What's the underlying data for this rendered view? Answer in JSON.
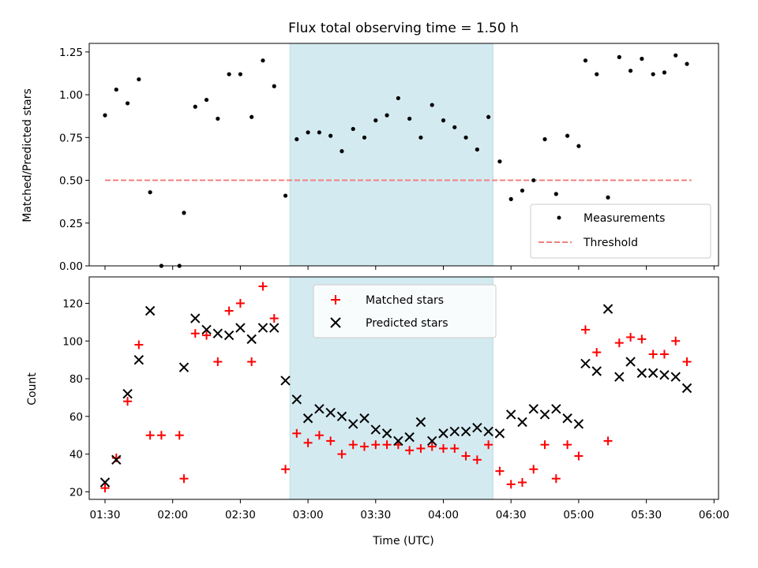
{
  "figure": {
    "title": "Flux total observing time = 1.50 h",
    "xlabel": "Time (UTC)"
  },
  "chart_data": [
    {
      "type": "scatter",
      "panel": "top",
      "ylabel": "Matched/Predicted stars",
      "xlim": [
        "01:23",
        "06:02"
      ],
      "ylim": [
        0,
        1.3
      ],
      "yticks": [
        "0.00",
        "0.25",
        "0.50",
        "0.75",
        "1.00",
        "1.25"
      ],
      "shaded_span": {
        "start": "02:52",
        "end": "04:22",
        "color": "#d4eaf1"
      },
      "threshold": {
        "name": "Threshold",
        "y": 0.5,
        "x_start": "01:30",
        "x_end": "05:50",
        "color": "#f08080",
        "style": "dashed"
      },
      "series": [
        {
          "name": "Measurements",
          "color": "#000000",
          "marker": "dot",
          "points": [
            [
              "01:30",
              0.88
            ],
            [
              "01:35",
              1.03
            ],
            [
              "01:40",
              0.95
            ],
            [
              "01:45",
              1.09
            ],
            [
              "01:50",
              0.43
            ],
            [
              "01:55",
              0.0
            ],
            [
              "02:03",
              0.0
            ],
            [
              "02:05",
              0.31
            ],
            [
              "02:10",
              0.93
            ],
            [
              "02:15",
              0.97
            ],
            [
              "02:20",
              0.86
            ],
            [
              "02:25",
              1.12
            ],
            [
              "02:30",
              1.12
            ],
            [
              "02:35",
              0.87
            ],
            [
              "02:40",
              1.2
            ],
            [
              "02:45",
              1.05
            ],
            [
              "02:50",
              0.41
            ],
            [
              "02:55",
              0.74
            ],
            [
              "03:00",
              0.78
            ],
            [
              "03:05",
              0.78
            ],
            [
              "03:10",
              0.76
            ],
            [
              "03:15",
              0.67
            ],
            [
              "03:20",
              0.8
            ],
            [
              "03:25",
              0.75
            ],
            [
              "03:30",
              0.85
            ],
            [
              "03:35",
              0.88
            ],
            [
              "03:40",
              0.98
            ],
            [
              "03:45",
              0.86
            ],
            [
              "03:50",
              0.75
            ],
            [
              "03:55",
              0.94
            ],
            [
              "04:00",
              0.85
            ],
            [
              "04:05",
              0.81
            ],
            [
              "04:10",
              0.75
            ],
            [
              "04:15",
              0.68
            ],
            [
              "04:20",
              0.87
            ],
            [
              "04:25",
              0.61
            ],
            [
              "04:30",
              0.39
            ],
            [
              "04:35",
              0.44
            ],
            [
              "04:40",
              0.5
            ],
            [
              "04:45",
              0.74
            ],
            [
              "04:50",
              0.42
            ],
            [
              "04:55",
              0.76
            ],
            [
              "05:00",
              0.7
            ],
            [
              "05:03",
              1.2
            ],
            [
              "05:08",
              1.12
            ],
            [
              "05:13",
              0.4
            ],
            [
              "05:18",
              1.22
            ],
            [
              "05:23",
              1.14
            ],
            [
              "05:28",
              1.21
            ],
            [
              "05:33",
              1.12
            ],
            [
              "05:38",
              1.13
            ],
            [
              "05:43",
              1.23
            ],
            [
              "05:48",
              1.18
            ]
          ]
        }
      ],
      "legend": {
        "placement": "lower-right",
        "entries": [
          "Measurements",
          "Threshold"
        ]
      }
    },
    {
      "type": "scatter",
      "panel": "bottom",
      "ylabel": "Count",
      "xlim": [
        "01:23",
        "06:02"
      ],
      "ylim": [
        16,
        134
      ],
      "yticks": [
        "20",
        "40",
        "60",
        "80",
        "100",
        "120"
      ],
      "xticks": [
        "01:30",
        "02:00",
        "02:30",
        "03:00",
        "03:30",
        "04:00",
        "04:30",
        "05:00",
        "05:30",
        "06:00"
      ],
      "shaded_span": {
        "start": "02:52",
        "end": "04:22",
        "color": "#d4eaf1"
      },
      "series": [
        {
          "name": "Matched stars",
          "color": "#ff0000",
          "marker": "plus",
          "points": [
            [
              "01:30",
              22
            ],
            [
              "01:35",
              38
            ],
            [
              "01:40",
              68
            ],
            [
              "01:45",
              98
            ],
            [
              "01:50",
              50
            ],
            [
              "01:55",
              50
            ],
            [
              "02:03",
              50
            ],
            [
              "02:05",
              27
            ],
            [
              "02:10",
              104
            ],
            [
              "02:15",
              103
            ],
            [
              "02:20",
              89
            ],
            [
              "02:25",
              116
            ],
            [
              "02:30",
              120
            ],
            [
              "02:35",
              89
            ],
            [
              "02:40",
              129
            ],
            [
              "02:45",
              112
            ],
            [
              "02:50",
              32
            ],
            [
              "02:55",
              51
            ],
            [
              "03:00",
              46
            ],
            [
              "03:05",
              50
            ],
            [
              "03:10",
              47
            ],
            [
              "03:15",
              40
            ],
            [
              "03:20",
              45
            ],
            [
              "03:25",
              44
            ],
            [
              "03:30",
              45
            ],
            [
              "03:35",
              45
            ],
            [
              "03:40",
              45
            ],
            [
              "03:45",
              42
            ],
            [
              "03:50",
              43
            ],
            [
              "03:55",
              44
            ],
            [
              "04:00",
              43
            ],
            [
              "04:05",
              43
            ],
            [
              "04:10",
              39
            ],
            [
              "04:15",
              37
            ],
            [
              "04:20",
              45
            ],
            [
              "04:25",
              31
            ],
            [
              "04:30",
              24
            ],
            [
              "04:35",
              25
            ],
            [
              "04:40",
              32
            ],
            [
              "04:45",
              45
            ],
            [
              "04:50",
              27
            ],
            [
              "04:55",
              45
            ],
            [
              "05:00",
              39
            ],
            [
              "05:03",
              106
            ],
            [
              "05:08",
              94
            ],
            [
              "05:13",
              47
            ],
            [
              "05:18",
              99
            ],
            [
              "05:23",
              102
            ],
            [
              "05:28",
              101
            ],
            [
              "05:33",
              93
            ],
            [
              "05:38",
              93
            ],
            [
              "05:43",
              100
            ],
            [
              "05:48",
              89
            ]
          ]
        },
        {
          "name": "Predicted stars",
          "color": "#000000",
          "marker": "x",
          "points": [
            [
              "01:30",
              25
            ],
            [
              "01:35",
              37
            ],
            [
              "01:40",
              72
            ],
            [
              "01:45",
              90
            ],
            [
              "01:50",
              116
            ],
            [
              "02:05",
              86
            ],
            [
              "02:10",
              112
            ],
            [
              "02:15",
              106
            ],
            [
              "02:20",
              104
            ],
            [
              "02:25",
              103
            ],
            [
              "02:30",
              107
            ],
            [
              "02:35",
              101
            ],
            [
              "02:40",
              107
            ],
            [
              "02:45",
              107
            ],
            [
              "02:50",
              79
            ],
            [
              "02:55",
              69
            ],
            [
              "03:00",
              59
            ],
            [
              "03:05",
              64
            ],
            [
              "03:10",
              62
            ],
            [
              "03:15",
              60
            ],
            [
              "03:20",
              56
            ],
            [
              "03:25",
              59
            ],
            [
              "03:30",
              53
            ],
            [
              "03:35",
              51
            ],
            [
              "03:40",
              47
            ],
            [
              "03:45",
              49
            ],
            [
              "03:50",
              57
            ],
            [
              "03:55",
              47
            ],
            [
              "04:00",
              51
            ],
            [
              "04:05",
              52
            ],
            [
              "04:10",
              52
            ],
            [
              "04:15",
              54
            ],
            [
              "04:20",
              52
            ],
            [
              "04:25",
              51
            ],
            [
              "04:30",
              61
            ],
            [
              "04:35",
              57
            ],
            [
              "04:40",
              64
            ],
            [
              "04:45",
              61
            ],
            [
              "04:50",
              64
            ],
            [
              "04:55",
              59
            ],
            [
              "05:00",
              56
            ],
            [
              "05:03",
              88
            ],
            [
              "05:08",
              84
            ],
            [
              "05:13",
              117
            ],
            [
              "05:18",
              81
            ],
            [
              "05:23",
              89
            ],
            [
              "05:28",
              83
            ],
            [
              "05:33",
              83
            ],
            [
              "05:38",
              82
            ],
            [
              "05:43",
              81
            ],
            [
              "05:48",
              75
            ]
          ]
        }
      ],
      "legend": {
        "placement": "upper-center",
        "entries": [
          "Matched stars",
          "Predicted stars"
        ]
      }
    }
  ]
}
